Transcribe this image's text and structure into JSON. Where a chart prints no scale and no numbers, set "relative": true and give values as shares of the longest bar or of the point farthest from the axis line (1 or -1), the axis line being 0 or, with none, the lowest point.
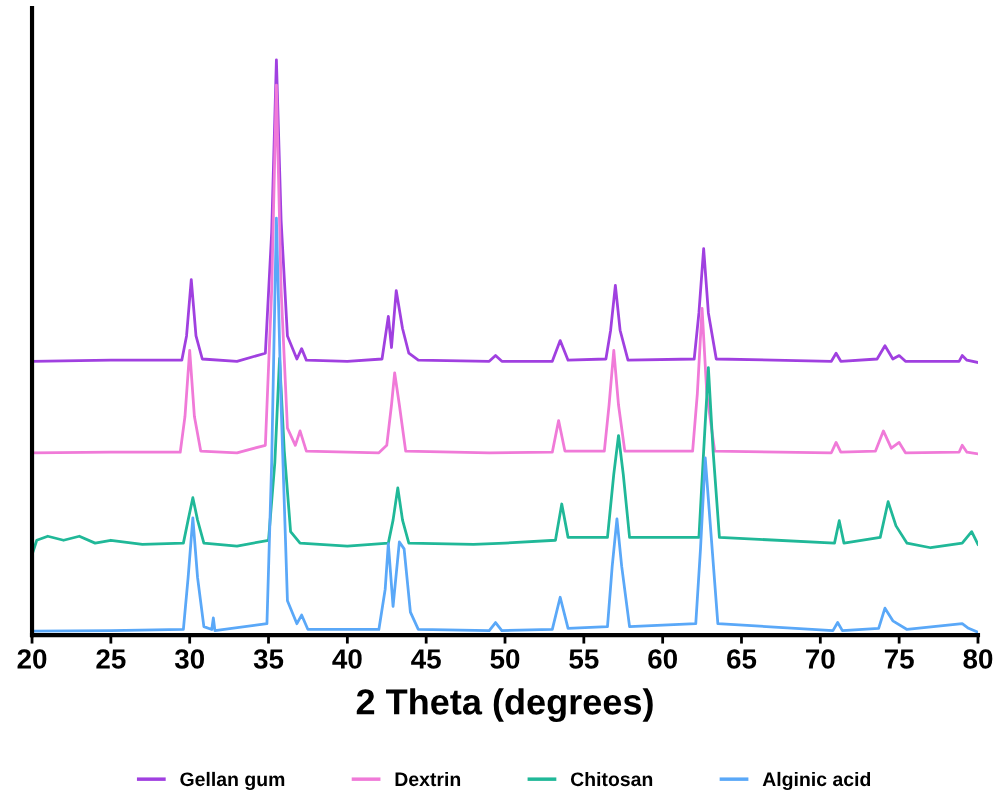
{
  "chart_data": {
    "type": "line",
    "relative": true,
    "xlabel": "2 Theta (degrees)",
    "xlim": [
      20,
      80
    ],
    "xticks": [
      20,
      25,
      30,
      35,
      40,
      45,
      50,
      55,
      60,
      65,
      70,
      75,
      80
    ],
    "tick_labels": "x",
    "grid": false,
    "legend": "bottom",
    "marker": "none",
    "line_style": "solid",
    "series": [
      {
        "name": "Gellan gum",
        "color": "#a040e0",
        "x": [
          20,
          25,
          29.5,
          29.8,
          30.1,
          30.4,
          30.8,
          33,
          34.8,
          35.2,
          35.5,
          35.8,
          36.2,
          36.8,
          37.1,
          37.4,
          40,
          42.2,
          42.6,
          42.8,
          43.1,
          43.5,
          43.9,
          44.5,
          49,
          49.4,
          49.8,
          53,
          53.5,
          54,
          56.4,
          56.7,
          57,
          57.3,
          57.8,
          62,
          62.3,
          62.6,
          62.9,
          63.4,
          70.7,
          71,
          71.3,
          73.6,
          74.1,
          74.6,
          75,
          75.4,
          78.8,
          79,
          79.3,
          80
        ],
        "values": [
          0.476,
          0.478,
          0.478,
          0.52,
          0.618,
          0.52,
          0.48,
          0.476,
          0.49,
          0.7,
          1.0,
          0.72,
          0.52,
          0.48,
          0.498,
          0.478,
          0.476,
          0.48,
          0.554,
          0.5,
          0.599,
          0.533,
          0.49,
          0.478,
          0.476,
          0.486,
          0.476,
          0.476,
          0.512,
          0.478,
          0.48,
          0.53,
          0.608,
          0.53,
          0.478,
          0.48,
          0.56,
          0.672,
          0.56,
          0.48,
          0.476,
          0.49,
          0.476,
          0.48,
          0.503,
          0.48,
          0.486,
          0.476,
          0.476,
          0.486,
          0.478,
          0.474
        ]
      },
      {
        "name": "Dextrin",
        "color": "#f07ad8",
        "x": [
          20,
          25,
          29.4,
          29.7,
          30.0,
          30.3,
          30.7,
          33,
          34.8,
          35.2,
          35.5,
          35.8,
          36.2,
          36.7,
          37.0,
          37.4,
          42,
          42.5,
          42.8,
          43.0,
          43.3,
          43.7,
          49,
          53,
          53.4,
          53.8,
          56.3,
          56.6,
          56.9,
          57.2,
          57.6,
          61.9,
          62.2,
          62.5,
          62.8,
          63.3,
          70.7,
          71,
          71.3,
          73.5,
          74,
          74.5,
          75,
          75.4,
          78.8,
          79,
          79.3,
          80
        ],
        "values": [
          0.317,
          0.318,
          0.318,
          0.38,
          0.495,
          0.38,
          0.32,
          0.317,
          0.33,
          0.6,
          0.956,
          0.6,
          0.36,
          0.33,
          0.355,
          0.32,
          0.317,
          0.33,
          0.4,
          0.456,
          0.4,
          0.32,
          0.317,
          0.318,
          0.373,
          0.32,
          0.32,
          0.4,
          0.495,
          0.4,
          0.32,
          0.32,
          0.42,
          0.568,
          0.42,
          0.32,
          0.317,
          0.335,
          0.318,
          0.32,
          0.355,
          0.325,
          0.335,
          0.317,
          0.318,
          0.33,
          0.318,
          0.315
        ]
      },
      {
        "name": "Chitosan",
        "color": "#20b898",
        "x": [
          20,
          20.3,
          21,
          22,
          23,
          24,
          25,
          27,
          29.6,
          29.9,
          30.2,
          30.5,
          30.9,
          33,
          35,
          35.4,
          35.7,
          36.0,
          36.4,
          37,
          40,
          42.6,
          42.9,
          43.2,
          43.5,
          43.9,
          48,
          50,
          53.2,
          53.6,
          54,
          56.5,
          56.9,
          57.2,
          57.5,
          57.9,
          62.3,
          62.6,
          62.9,
          63.2,
          63.6,
          70.9,
          71.2,
          71.5,
          73.8,
          74.3,
          74.8,
          75.5,
          77,
          79,
          79.6,
          80
        ],
        "values": [
          0.14,
          0.165,
          0.172,
          0.165,
          0.172,
          0.16,
          0.165,
          0.158,
          0.16,
          0.2,
          0.239,
          0.2,
          0.16,
          0.155,
          0.165,
          0.3,
          0.481,
          0.32,
          0.18,
          0.16,
          0.155,
          0.16,
          0.2,
          0.256,
          0.2,
          0.16,
          0.158,
          0.16,
          0.165,
          0.228,
          0.17,
          0.17,
          0.28,
          0.347,
          0.28,
          0.17,
          0.17,
          0.32,
          0.465,
          0.32,
          0.17,
          0.16,
          0.199,
          0.16,
          0.17,
          0.232,
          0.19,
          0.16,
          0.152,
          0.16,
          0.18,
          0.158
        ]
      },
      {
        "name": "Alginic acid",
        "color": "#5aa8f8",
        "x": [
          20,
          25,
          29.6,
          29.9,
          30.2,
          30.5,
          30.9,
          31.4,
          31.5,
          31.6,
          34.9,
          35.2,
          35.5,
          35.8,
          36.2,
          36.8,
          37.1,
          37.5,
          42,
          42.4,
          42.6,
          42.9,
          43.3,
          43.6,
          44,
          44.5,
          49,
          49.4,
          49.8,
          53,
          53.5,
          54,
          56.5,
          56.8,
          57.1,
          57.4,
          57.9,
          62.1,
          62.4,
          62.7,
          63,
          63.5,
          70.8,
          71.1,
          71.4,
          73.7,
          74.1,
          74.6,
          75.5,
          79,
          79.4,
          80
        ],
        "values": [
          0.007,
          0.008,
          0.01,
          0.1,
          0.204,
          0.1,
          0.015,
          0.01,
          0.03,
          0.008,
          0.02,
          0.3,
          0.725,
          0.4,
          0.06,
          0.02,
          0.035,
          0.01,
          0.01,
          0.08,
          0.159,
          0.05,
          0.162,
          0.15,
          0.04,
          0.01,
          0.008,
          0.022,
          0.008,
          0.01,
          0.066,
          0.012,
          0.015,
          0.12,
          0.202,
          0.12,
          0.015,
          0.02,
          0.15,
          0.308,
          0.2,
          0.02,
          0.008,
          0.022,
          0.008,
          0.012,
          0.047,
          0.025,
          0.01,
          0.02,
          0.012,
          0.005
        ]
      }
    ]
  }
}
